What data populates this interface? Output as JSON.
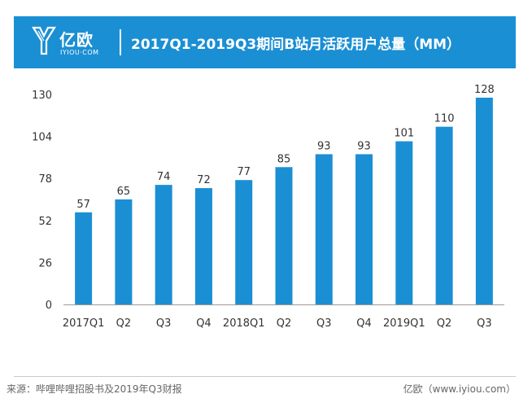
{
  "header": {
    "logo_cn": "亿欧",
    "logo_en": "IYIOU·COM",
    "title": "2017Q1-2019Q3期间B站月活跃用户总量（MM）"
  },
  "colors": {
    "banner": "#1b8fd3",
    "bar": "#1b8fd3",
    "axis": "#9a9a9a",
    "label": "#333333"
  },
  "chart_data": {
    "type": "bar",
    "title": "2017Q1-2019Q3期间B站月活跃用户总量（MM）",
    "xlabel": "",
    "ylabel": "",
    "categories": [
      "2017Q1",
      "Q2",
      "Q3",
      "Q4",
      "2018Q1",
      "Q2",
      "Q3",
      "Q4",
      "2019Q1",
      "Q2",
      "Q3"
    ],
    "values": [
      57,
      65,
      74,
      72,
      77,
      85,
      93,
      93,
      101,
      110,
      128
    ],
    "yticks": [
      0,
      26,
      52,
      78,
      104,
      130
    ],
    "ylim": [
      0,
      130
    ],
    "grid": false,
    "data_labels": true
  },
  "footer": {
    "source": "来源：哔哩哔哩招股书及2019年Q3财报",
    "brand": "亿欧（www.iyiou.com）"
  }
}
